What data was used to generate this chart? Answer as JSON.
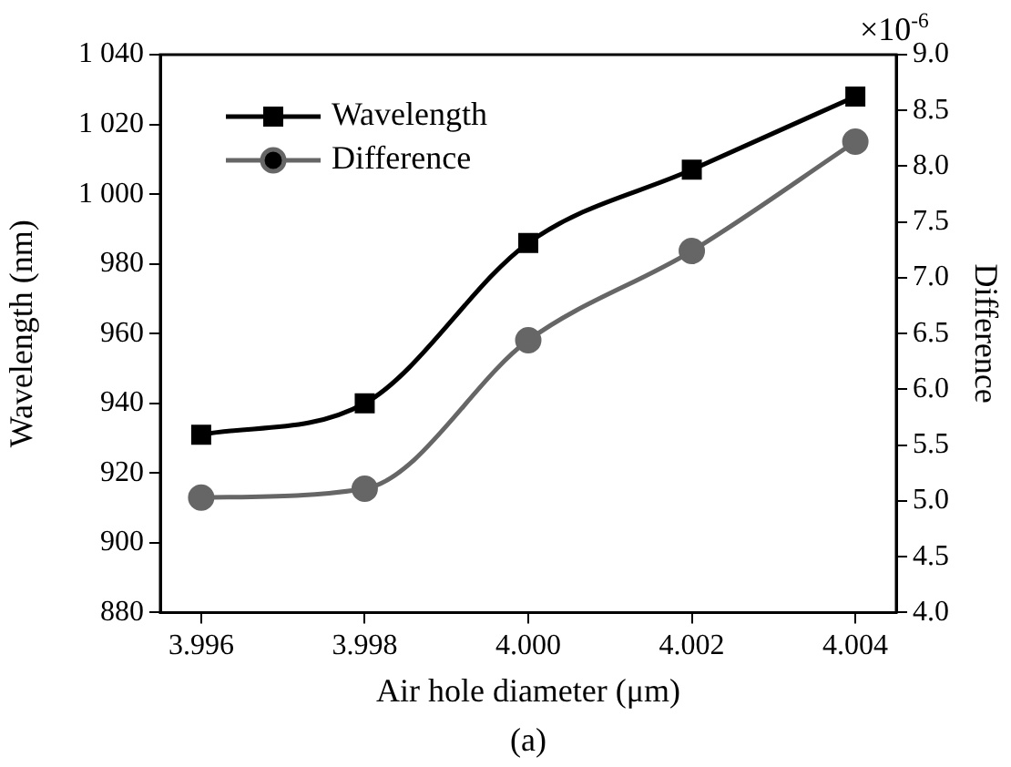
{
  "chart_data": {
    "type": "line",
    "xlabel": "Air hole diameter (μm)",
    "ylabel": "Wavelength (nm)",
    "y2label": "Difference",
    "annotations": [
      "×10$^{-6}$",
      "(a)"
    ],
    "x": [
      3.996,
      3.998,
      4.0,
      4.002,
      4.004
    ],
    "xlim": [
      3.9955,
      4.0045
    ],
    "xticks": [
      3.996,
      3.998,
      {
        "value": 4.0,
        "label": "4.000"
      },
      4.002,
      4.004
    ],
    "ylim": [
      880,
      1040
    ],
    "yticks": [
      880,
      900,
      920,
      940,
      960,
      980,
      {
        "value": 1000,
        "label": "1 000"
      },
      {
        "value": 1020,
        "label": "1 020"
      },
      {
        "value": 1040,
        "label": "1 040"
      }
    ],
    "y2lim": [
      4,
      9
    ],
    "y2ticks": [
      {
        "value": 4,
        "label": "4.0"
      },
      4.5,
      {
        "value": 5,
        "label": "5.0"
      },
      5.5,
      {
        "value": 6,
        "label": "6.0"
      },
      6.5,
      {
        "value": 7,
        "label": "7.0"
      },
      7.5,
      {
        "value": 8,
        "label": "8.0"
      },
      8.5,
      {
        "value": 9,
        "label": "9.0"
      }
    ],
    "series": [
      {
        "name": "Wavelength",
        "color": "#000000",
        "marker": "square",
        "values": [
          931,
          940,
          986,
          1007,
          1028
        ]
      },
      {
        "name": "Difference",
        "color": "#666666",
        "marker": "circle",
        "axis": "y2",
        "values": [
          5.03,
          5.11,
          6.44,
          7.24,
          8.22
        ]
      }
    ],
    "grid": false,
    "legend": "top left"
  }
}
